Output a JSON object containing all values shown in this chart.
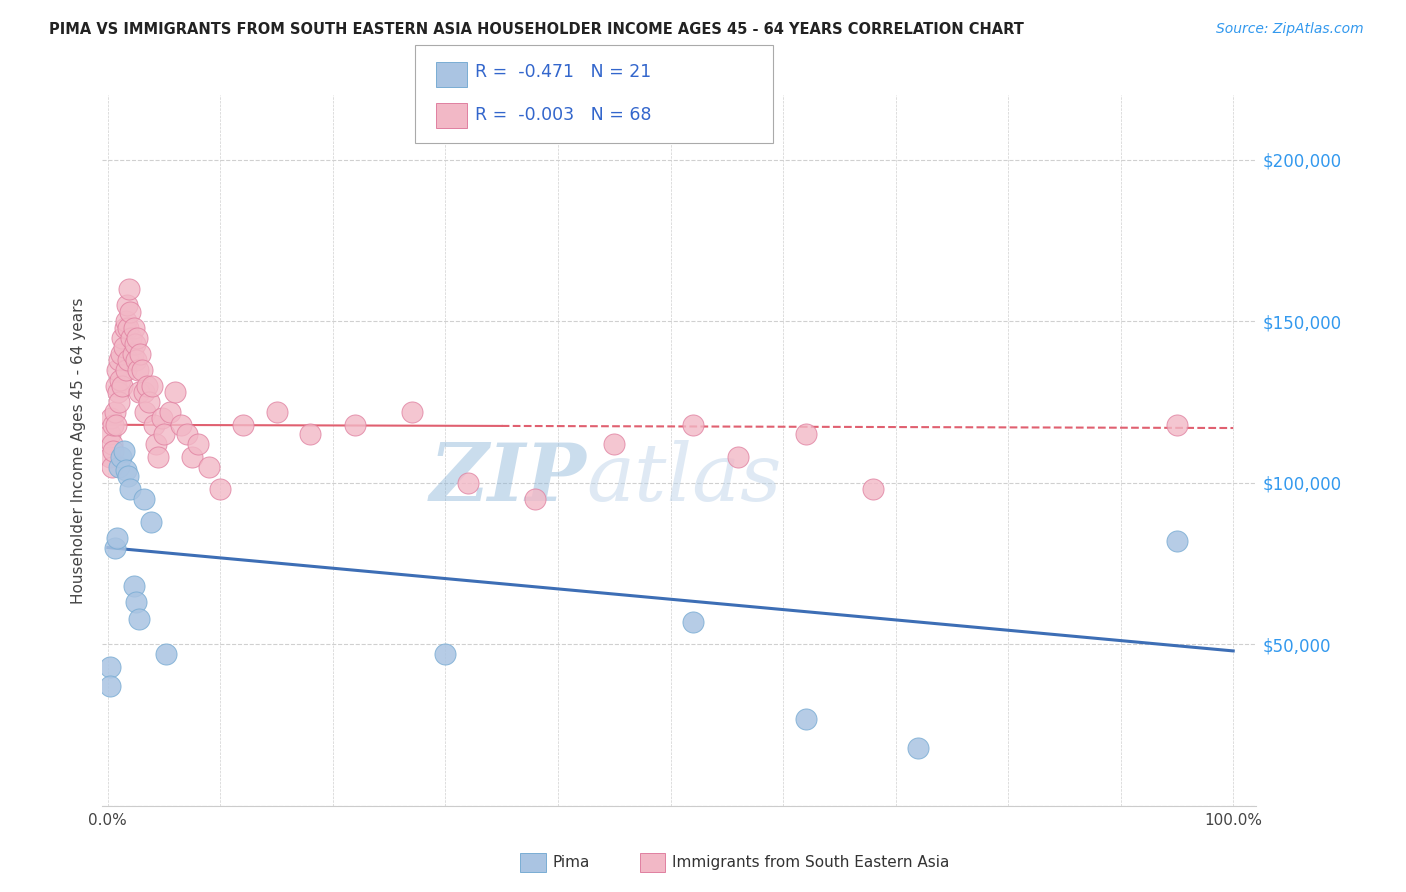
{
  "title": "PIMA VS IMMIGRANTS FROM SOUTH EASTERN ASIA HOUSEHOLDER INCOME AGES 45 - 64 YEARS CORRELATION CHART",
  "source": "Source: ZipAtlas.com",
  "ylabel": "Householder Income Ages 45 - 64 years",
  "ylim": [
    0,
    220000
  ],
  "xlim": [
    -0.005,
    1.02
  ],
  "legend_blue_r": "-0.471",
  "legend_blue_n": "21",
  "legend_pink_r": "-0.003",
  "legend_pink_n": "68",
  "blue_color": "#aac4e2",
  "pink_color": "#f2b8c6",
  "blue_line_color": "#3d6eb5",
  "pink_line_color": "#e06070",
  "watermark": "ZIPatlas",
  "blue_points_x": [
    0.002,
    0.002,
    0.006,
    0.008,
    0.01,
    0.012,
    0.014,
    0.016,
    0.018,
    0.02,
    0.023,
    0.025,
    0.028,
    0.032,
    0.038,
    0.052,
    0.3,
    0.52,
    0.62,
    0.72,
    0.95
  ],
  "blue_points_y": [
    43000,
    37000,
    80000,
    83000,
    105000,
    108000,
    110000,
    104000,
    102000,
    98000,
    68000,
    63000,
    58000,
    95000,
    88000,
    47000,
    47000,
    57000,
    27000,
    18000,
    82000
  ],
  "pink_points_x": [
    0.002,
    0.002,
    0.003,
    0.004,
    0.004,
    0.005,
    0.005,
    0.006,
    0.007,
    0.007,
    0.008,
    0.009,
    0.01,
    0.01,
    0.011,
    0.012,
    0.013,
    0.013,
    0.014,
    0.015,
    0.016,
    0.016,
    0.017,
    0.018,
    0.018,
    0.019,
    0.02,
    0.021,
    0.022,
    0.023,
    0.024,
    0.025,
    0.026,
    0.027,
    0.028,
    0.029,
    0.03,
    0.032,
    0.033,
    0.035,
    0.037,
    0.039,
    0.041,
    0.043,
    0.045,
    0.048,
    0.05,
    0.055,
    0.06,
    0.065,
    0.07,
    0.075,
    0.08,
    0.09,
    0.1,
    0.12,
    0.15,
    0.18,
    0.22,
    0.27,
    0.32,
    0.38,
    0.45,
    0.52,
    0.56,
    0.62,
    0.68,
    0.95
  ],
  "pink_points_y": [
    115000,
    108000,
    120000,
    112000,
    105000,
    118000,
    110000,
    122000,
    130000,
    118000,
    135000,
    128000,
    138000,
    125000,
    132000,
    140000,
    145000,
    130000,
    142000,
    148000,
    150000,
    135000,
    155000,
    148000,
    138000,
    160000,
    153000,
    145000,
    140000,
    148000,
    143000,
    138000,
    145000,
    135000,
    128000,
    140000,
    135000,
    128000,
    122000,
    130000,
    125000,
    130000,
    118000,
    112000,
    108000,
    120000,
    115000,
    122000,
    128000,
    118000,
    115000,
    108000,
    112000,
    105000,
    98000,
    118000,
    122000,
    115000,
    118000,
    122000,
    100000,
    95000,
    112000,
    118000,
    108000,
    115000,
    98000,
    118000
  ]
}
